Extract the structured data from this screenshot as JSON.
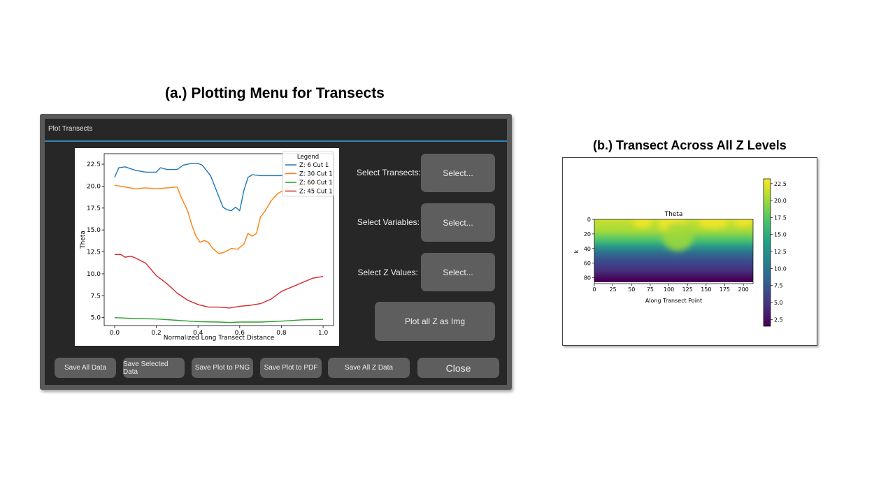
{
  "captions": {
    "a": "(a.) Plotting Menu for Transects",
    "b": "(b.) Transect Across All Z Levels"
  },
  "dialog": {
    "title": "Plot Transects",
    "rows": [
      {
        "label": "Select Transects:",
        "button": "Select..."
      },
      {
        "label": "Select Variables:",
        "button": "Select..."
      },
      {
        "label": "Select Z Values:",
        "button": "Select..."
      }
    ],
    "plot_all_button": "Plot all Z as Img",
    "bottom_buttons": [
      "Save All Data",
      "Save Selected Data",
      "Save Plot to PNG",
      "Save Plot to PDF",
      "Save All Z Data",
      "Close"
    ]
  },
  "chart_data": [
    {
      "type": "line",
      "xlabel": "Normalized Long Transect Distance",
      "ylabel": "Theta",
      "xlim": [
        -0.05,
        1.05
      ],
      "ylim": [
        4.1,
        23.7
      ],
      "xticks": [
        "0.0",
        "0.2",
        "0.4",
        "0.6",
        "0.8",
        "1.0"
      ],
      "yticks": [
        "5.0",
        "7.5",
        "10.0",
        "12.5",
        "15.0",
        "17.5",
        "20.0",
        "22.5"
      ],
      "legend": {
        "title": "Legend",
        "placement": "top-right"
      },
      "series": [
        {
          "name": "Z: 6 Cut 1",
          "color": "#1f77b4",
          "x": [
            0,
            0.02,
            0.05,
            0.1,
            0.15,
            0.2,
            0.22,
            0.25,
            0.3,
            0.33,
            0.37,
            0.4,
            0.42,
            0.44,
            0.46,
            0.48,
            0.5,
            0.52,
            0.54,
            0.56,
            0.58,
            0.6,
            0.62,
            0.64,
            0.66,
            0.7,
            0.75,
            0.8,
            0.85,
            0.9,
            0.95,
            1.0
          ],
          "y": [
            21.0,
            22.1,
            22.2,
            21.8,
            21.6,
            21.6,
            22.1,
            21.9,
            21.9,
            22.4,
            22.6,
            22.6,
            22.4,
            21.8,
            21.2,
            20.0,
            18.8,
            17.6,
            17.3,
            17.2,
            17.6,
            17.2,
            19.5,
            21.0,
            21.3,
            21.2,
            21.2,
            21.2,
            21.6,
            21.2,
            21.3,
            21.3
          ]
        },
        {
          "name": "Z: 30 Cut 1",
          "color": "#ff7f0e",
          "x": [
            0,
            0.05,
            0.1,
            0.15,
            0.2,
            0.25,
            0.3,
            0.32,
            0.35,
            0.37,
            0.39,
            0.41,
            0.43,
            0.45,
            0.47,
            0.5,
            0.53,
            0.56,
            0.59,
            0.62,
            0.64,
            0.66,
            0.68,
            0.7,
            0.72,
            0.75,
            0.78,
            0.8,
            0.85,
            0.9,
            0.95,
            1.0
          ],
          "y": [
            20.1,
            19.9,
            19.7,
            19.8,
            19.7,
            19.8,
            19.9,
            18.7,
            17.2,
            15.6,
            14.3,
            13.6,
            13.8,
            13.6,
            12.9,
            12.3,
            12.5,
            12.9,
            12.8,
            13.4,
            14.6,
            14.3,
            14.6,
            16.5,
            17.1,
            18.3,
            19.1,
            19.4,
            20.0,
            20.2,
            20.3,
            20.4
          ]
        },
        {
          "name": "Z: 60 Cut 1",
          "color": "#2ca02c",
          "x": [
            0,
            0.05,
            0.1,
            0.2,
            0.3,
            0.4,
            0.5,
            0.55,
            0.6,
            0.7,
            0.8,
            0.9,
            1.0
          ],
          "y": [
            5.0,
            4.95,
            4.9,
            4.85,
            4.7,
            4.55,
            4.5,
            4.45,
            4.5,
            4.5,
            4.6,
            4.75,
            4.8
          ]
        },
        {
          "name": "Z: 45 Cut 1",
          "color": "#d62728",
          "x": [
            0,
            0.03,
            0.05,
            0.08,
            0.1,
            0.15,
            0.2,
            0.25,
            0.3,
            0.35,
            0.4,
            0.45,
            0.5,
            0.55,
            0.6,
            0.65,
            0.7,
            0.75,
            0.8,
            0.85,
            0.9,
            0.95,
            1.0
          ],
          "y": [
            12.2,
            12.2,
            11.9,
            12.0,
            11.8,
            11.2,
            9.8,
            8.9,
            7.8,
            7.0,
            6.5,
            6.2,
            6.2,
            6.1,
            6.3,
            6.4,
            6.6,
            7.1,
            8.0,
            8.5,
            9.0,
            9.5,
            9.7
          ]
        }
      ]
    },
    {
      "type": "heatmap",
      "title": "Theta",
      "xlabel": "Along Transect Point",
      "ylabel": "k",
      "xlim": [
        0,
        213
      ],
      "ylim": [
        88,
        0
      ],
      "xticks": [
        "0",
        "25",
        "50",
        "75",
        "100",
        "125",
        "150",
        "175",
        "200"
      ],
      "yticks": [
        "0",
        "20",
        "40",
        "60",
        "80"
      ],
      "colorbar": {
        "min": 1.5,
        "max": 23.2,
        "ticks": [
          "2.5",
          "5.0",
          "7.5",
          "10.0",
          "12.5",
          "15.0",
          "17.5",
          "20.0",
          "22.5"
        ],
        "colormap": "viridis"
      },
      "colormap_stops": [
        "#440154",
        "#46327e",
        "#365c8d",
        "#277f8e",
        "#1fa187",
        "#4ac16d",
        "#a0da39",
        "#fde725"
      ]
    }
  ]
}
